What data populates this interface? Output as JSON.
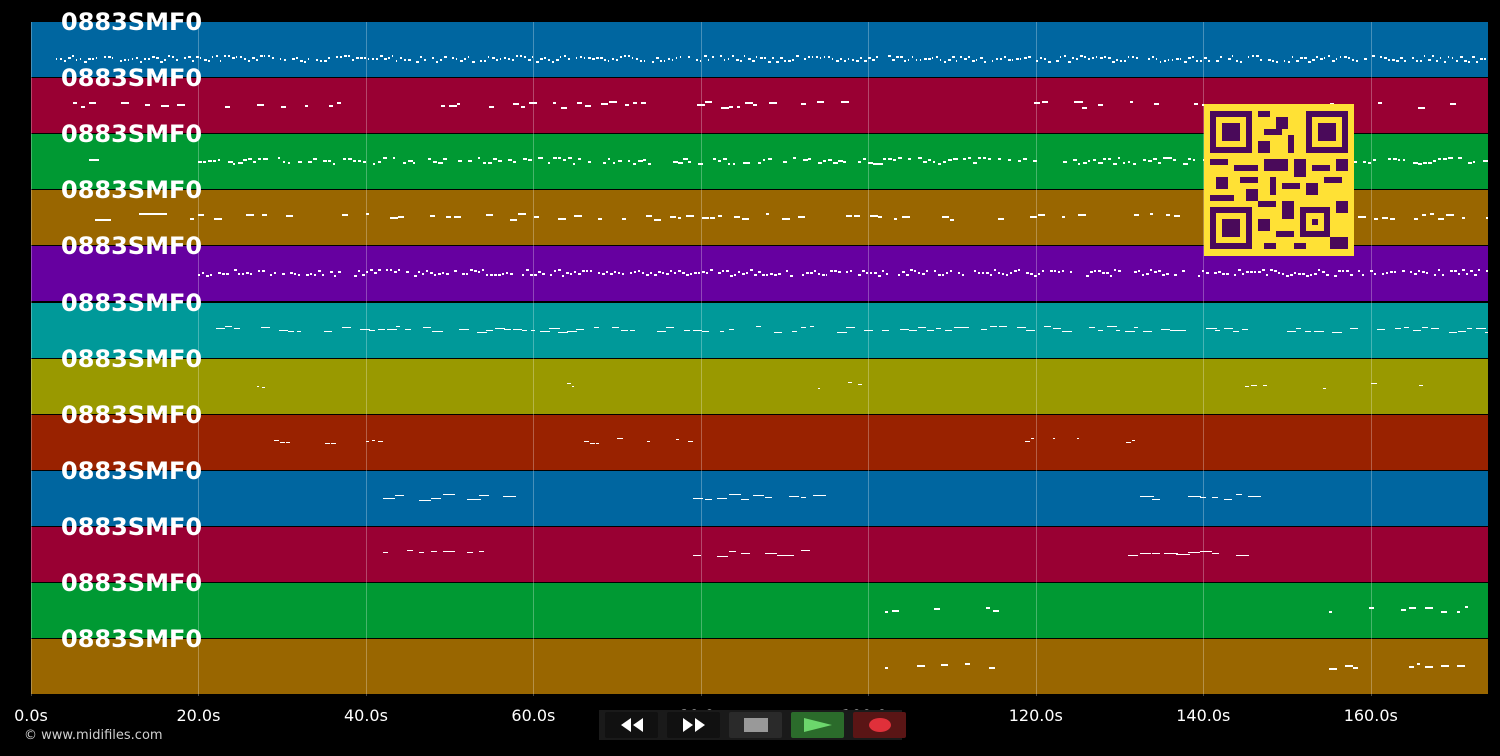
{
  "app": {
    "track_label": "0883SMF0",
    "copyright": "© www.midifiles.com"
  },
  "timeline": {
    "ticks": [
      "0.0s",
      "20.0s",
      "40.0s",
      "60.0s",
      "80.0s",
      "100.0s",
      "120.0s",
      "140.0s",
      "160.0s"
    ],
    "tick_seconds": [
      0,
      20,
      40,
      60,
      80,
      100,
      120,
      140,
      160
    ],
    "duration_seconds": 174
  },
  "tracks": [
    {
      "name": "0883SMF0",
      "color": "#0066a0"
    },
    {
      "name": "0883SMF0",
      "color": "#990033"
    },
    {
      "name": "0883SMF0",
      "color": "#009933"
    },
    {
      "name": "0883SMF0",
      "color": "#996600"
    },
    {
      "name": "0883SMF0",
      "color": "#6600a0"
    },
    {
      "name": "0883SMF0",
      "color": "#009999"
    },
    {
      "name": "0883SMF0",
      "color": "#999900"
    },
    {
      "name": "0883SMF0",
      "color": "#992200"
    },
    {
      "name": "0883SMF0",
      "color": "#0066a0"
    },
    {
      "name": "0883SMF0",
      "color": "#990033"
    },
    {
      "name": "0883SMF0",
      "color": "#009933"
    },
    {
      "name": "0883SMF0",
      "color": "#996600"
    }
  ],
  "controls": {
    "rewind_icon": "rewind-icon",
    "forward_icon": "fast-forward-icon",
    "stop_icon": "stop-icon",
    "play_icon": "play-icon",
    "record_icon": "record-icon"
  }
}
